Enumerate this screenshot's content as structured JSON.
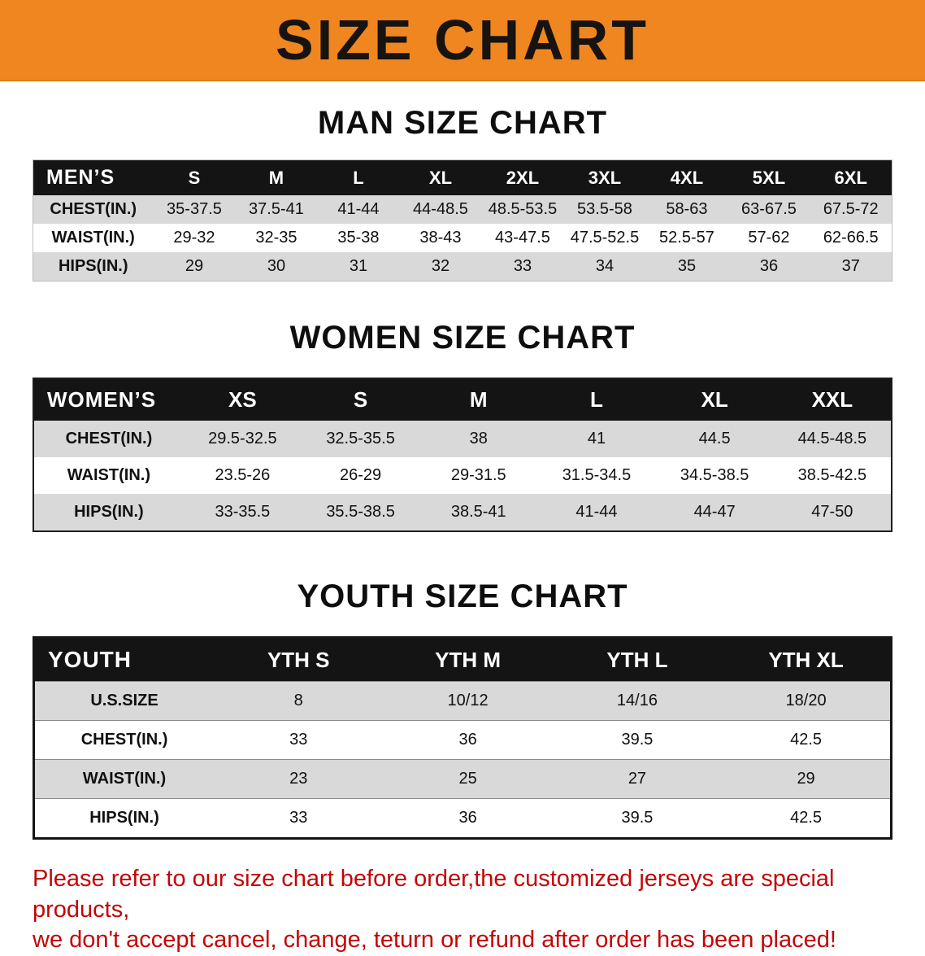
{
  "colors": {
    "banner-orange": "#f0861f",
    "header-black": "#141414",
    "row-gray": "#d9d9d9",
    "disclaimer-red": "#c40505"
  },
  "banner": {
    "title": "SIZE CHART"
  },
  "men": {
    "heading": "MAN SIZE CHART",
    "table": {
      "header": [
        "MEN’S",
        "S",
        "M",
        "L",
        "XL",
        "2XL",
        "3XL",
        "4XL",
        "5XL",
        "6XL"
      ],
      "rows": [
        {
          "label": "CHEST(IN.)",
          "values": [
            "35-37.5",
            "37.5-41",
            "41-44",
            "44-48.5",
            "48.5-53.5",
            "53.5-58",
            "58-63",
            "63-67.5",
            "67.5-72"
          ]
        },
        {
          "label": "WAIST(IN.)",
          "values": [
            "29-32",
            "32-35",
            "35-38",
            "38-43",
            "43-47.5",
            "47.5-52.5",
            "52.5-57",
            "57-62",
            "62-66.5"
          ]
        },
        {
          "label": "HIPS(IN.)",
          "values": [
            "29",
            "30",
            "31",
            "32",
            "33",
            "34",
            "35",
            "36",
            "37"
          ]
        }
      ]
    }
  },
  "women": {
    "heading": "WOMEN SIZE CHART",
    "table": {
      "header": [
        "WOMEN’S",
        "XS",
        "S",
        "M",
        "L",
        "XL",
        "XXL"
      ],
      "rows": [
        {
          "label": "CHEST(IN.)",
          "values": [
            "29.5-32.5",
            "32.5-35.5",
            "38",
            "41",
            "44.5",
            "44.5-48.5"
          ]
        },
        {
          "label": "WAIST(IN.)",
          "values": [
            "23.5-26",
            "26-29",
            "29-31.5",
            "31.5-34.5",
            "34.5-38.5",
            "38.5-42.5"
          ]
        },
        {
          "label": "HIPS(IN.)",
          "values": [
            "33-35.5",
            "35.5-38.5",
            "38.5-41",
            "41-44",
            "44-47",
            "47-50"
          ]
        }
      ]
    }
  },
  "youth": {
    "heading": "YOUTH SIZE CHART",
    "table": {
      "header": [
        "YOUTH",
        "YTH S",
        "YTH M",
        "YTH L",
        "YTH XL"
      ],
      "rows": [
        {
          "label": "U.S.SIZE",
          "values": [
            "8",
            "10/12",
            "14/16",
            "18/20"
          ]
        },
        {
          "label": "CHEST(IN.)",
          "values": [
            "33",
            "36",
            "39.5",
            "42.5"
          ]
        },
        {
          "label": "WAIST(IN.)",
          "values": [
            "23",
            "25",
            "27",
            "29"
          ]
        },
        {
          "label": "HIPS(IN.)",
          "values": [
            "33",
            "36",
            "39.5",
            "42.5"
          ]
        }
      ]
    }
  },
  "disclaimer": {
    "line1": "Please refer to our size chart before order,the customized jerseys are special products,",
    "line2": "we don't accept cancel, change, teturn or refund after order has been placed!"
  }
}
